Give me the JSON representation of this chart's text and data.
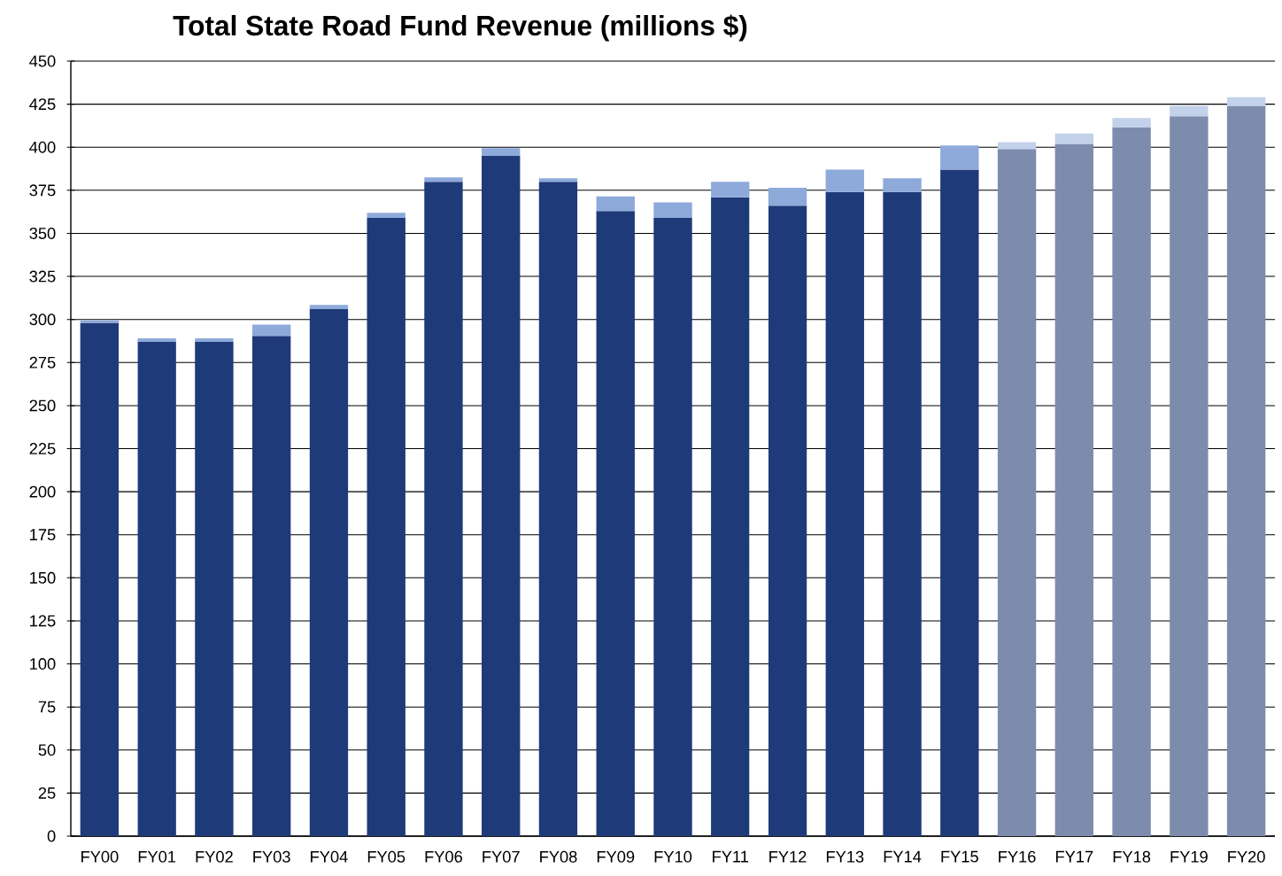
{
  "chart_data": {
    "type": "bar",
    "title": "Total State Road Fund Revenue (millions $)",
    "categories": [
      "FY00",
      "FY01",
      "FY02",
      "FY03",
      "FY04",
      "FY05",
      "FY06",
      "FY07",
      "FY08",
      "FY09",
      "FY10",
      "FY11",
      "FY12",
      "FY13",
      "FY14",
      "FY15",
      "FY16",
      "FY17",
      "FY18",
      "FY19",
      "FY20"
    ],
    "stacked": true,
    "series": [
      {
        "color": "#1f3a78",
        "values": [
          298,
          287,
          287,
          290.5,
          306,
          359,
          380,
          395,
          380,
          363,
          359,
          371,
          366,
          374,
          374,
          387,
          null,
          null,
          null,
          null,
          null
        ]
      },
      {
        "color": "#8eaadb",
        "values": [
          1.5,
          2,
          2,
          6.5,
          2.5,
          3,
          2.5,
          4.5,
          2,
          8.5,
          9,
          9,
          10.5,
          13,
          8,
          14,
          null,
          null,
          null,
          null,
          null
        ]
      },
      {
        "color": "#7d8bad",
        "values": [
          null,
          null,
          null,
          null,
          null,
          null,
          null,
          null,
          null,
          null,
          null,
          null,
          null,
          null,
          null,
          null,
          399,
          402,
          411.5,
          418,
          424
        ]
      },
      {
        "color": "#c3d1ea",
        "values": [
          null,
          null,
          null,
          null,
          null,
          null,
          null,
          null,
          null,
          null,
          null,
          null,
          null,
          null,
          null,
          null,
          4,
          6,
          5.5,
          6,
          5
        ]
      }
    ],
    "ylim": [
      0,
      450
    ],
    "yticks": [
      0,
      25,
      50,
      75,
      100,
      125,
      150,
      175,
      200,
      225,
      250,
      275,
      300,
      325,
      350,
      375,
      400,
      425,
      450
    ],
    "grid": "y"
  }
}
